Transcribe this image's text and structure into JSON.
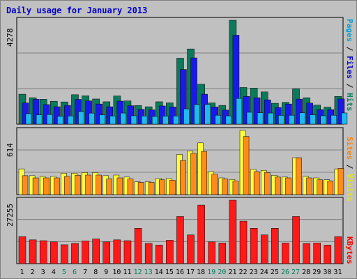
{
  "title": "Daily usage for January 2013",
  "chart_data": {
    "type": "bar",
    "title": "Daily usage for January 2013",
    "categories": [
      "1",
      "2",
      "3",
      "4",
      "5",
      "6",
      "7",
      "8",
      "9",
      "10",
      "11",
      "12",
      "13",
      "14",
      "15",
      "16",
      "17",
      "18",
      "19",
      "20",
      "21",
      "22",
      "23",
      "24",
      "25",
      "26",
      "27",
      "28",
      "29",
      "30",
      "31"
    ],
    "weekend_days": [
      "5",
      "6",
      "12",
      "13",
      "19",
      "20",
      "26",
      "27"
    ],
    "panels": [
      {
        "name": "hits",
        "ymax_label": "4278",
        "ymax": 4278,
        "legend": [
          {
            "text": "Pages",
            "color": "#00a0d0"
          },
          {
            "text": " / ",
            "color": "#000000"
          },
          {
            "text": "Files",
            "color": "#0000cc"
          },
          {
            "text": " / ",
            "color": "#000000"
          },
          {
            "text": "Hits",
            "color": "#008060"
          }
        ],
        "series": [
          {
            "name": "Hits",
            "color": "#0a7a5a",
            "values": [
              1232,
              1089,
              1022,
              943,
              915,
              1211,
              1169,
              1036,
              921,
              1162,
              957,
              766,
              716,
              921,
              877,
              2713,
              3096,
              1646,
              874,
              772,
              4278,
              1508,
              1482,
              1326,
              859,
              897,
              1461,
              1089,
              784,
              702,
              1140
            ]
          },
          {
            "name": "Files",
            "color": "#1a1ae8",
            "values": [
              874,
              1022,
              805,
              716,
              774,
              1019,
              958,
              829,
              716,
              948,
              759,
              609,
              588,
              748,
              707,
              2251,
              2726,
              1232,
              707,
              579,
              3661,
              1140,
              1089,
              1001,
              686,
              829,
              1029,
              868,
              599,
              599,
              1036
            ]
          },
          {
            "name": "Pages",
            "color": "#22b8f0",
            "values": [
              431,
              383,
              396,
              324,
              335,
              519,
              455,
              383,
              335,
              457,
              345,
              335,
              318,
              329,
              335,
              630,
              808,
              815,
              367,
              341,
              1059,
              489,
              469,
              457,
              362,
              367,
              469,
              383,
              345,
              367,
              461
            ]
          }
        ]
      },
      {
        "name": "visits",
        "ymax_label": "614",
        "ymax": 614,
        "legend": [
          {
            "text": "Sites",
            "color": "#ff8000"
          },
          {
            "text": " / ",
            "color": "#000000"
          },
          {
            "text": "Visits",
            "color": "#e8e800"
          }
        ],
        "series": [
          {
            "name": "Visits",
            "color": "#ffff40",
            "values": [
              246,
              181,
              174,
              174,
              205,
              205,
              211,
              211,
              181,
              187,
              168,
              123,
              123,
              154,
              154,
              385,
              417,
              495,
              220,
              160,
              145,
              614,
              243,
              232,
              184,
              168,
              353,
              174,
              160,
              142,
              246
            ]
          },
          {
            "name": "Sites",
            "color": "#ff8c1a",
            "values": [
              181,
              160,
              160,
              160,
              174,
              184,
              187,
              187,
              150,
              160,
              150,
              117,
              117,
              142,
              137,
              327,
              395,
              413,
              195,
              150,
              130,
              556,
              220,
              211,
              168,
              160,
              353,
              160,
              142,
              131,
              251
            ]
          }
        ]
      },
      {
        "name": "kbytes",
        "ymax_label": "27255",
        "ymax": 27255,
        "legend": [
          {
            "text": "KBytes",
            "color": "#ff0000"
          }
        ],
        "series": [
          {
            "name": "KBytes",
            "color": "#ff1a1a",
            "values": [
              11580,
              10230,
              9870,
              9330,
              8110,
              8690,
              9740,
              10600,
              9330,
              10230,
              9870,
              15190,
              8690,
              7970,
              10050,
              20240,
              12340,
              25140,
              9330,
              8860,
              27255,
              18250,
              15190,
              12340,
              15190,
              8860,
              20240,
              8690,
              8860,
              7970,
              11580
            ]
          }
        ]
      }
    ]
  }
}
